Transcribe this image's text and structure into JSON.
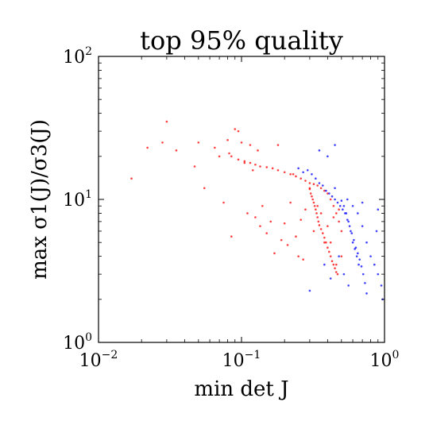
{
  "chart_data": {
    "type": "scatter",
    "title": "top 95% quality",
    "xlabel": "min det J",
    "ylabel": "max σ1(J)/σ3(J)",
    "x_scale": "log",
    "y_scale": "log",
    "xlim": [
      0.01,
      1
    ],
    "ylim": [
      1,
      100
    ],
    "x_ticks": [
      {
        "value": 0.01,
        "base": "10",
        "exp": "−2"
      },
      {
        "value": 0.1,
        "base": "10",
        "exp": "−1"
      },
      {
        "value": 1,
        "base": "10",
        "exp": "0"
      }
    ],
    "y_ticks": [
      {
        "value": 1,
        "base": "10",
        "exp": "0"
      },
      {
        "value": 10,
        "base": "10",
        "exp": "1"
      },
      {
        "value": 100,
        "base": "10",
        "exp": "2"
      }
    ],
    "grid": false,
    "legend": "none",
    "series": [
      {
        "color": "#ff0000",
        "points": [
          [
            0.017,
            14.0
          ],
          [
            0.022,
            23.0
          ],
          [
            0.028,
            25.0
          ],
          [
            0.03,
            35.0
          ],
          [
            0.035,
            22.0
          ],
          [
            0.047,
            17.0
          ],
          [
            0.05,
            25.0
          ],
          [
            0.055,
            12.0
          ],
          [
            0.065,
            23.0
          ],
          [
            0.07,
            20.0
          ],
          [
            0.075,
            9.5
          ],
          [
            0.08,
            26.0
          ],
          [
            0.082,
            21.0
          ],
          [
            0.085,
            5.5
          ],
          [
            0.09,
            31.0
          ],
          [
            0.095,
            30.0
          ],
          [
            0.1,
            25.0
          ],
          [
            0.105,
            18.0
          ],
          [
            0.11,
            8.0
          ],
          [
            0.115,
            24.0
          ],
          [
            0.12,
            16.0
          ],
          [
            0.125,
            7.5
          ],
          [
            0.13,
            22.0
          ],
          [
            0.135,
            6.5
          ],
          [
            0.14,
            9.0
          ],
          [
            0.15,
            5.8
          ],
          [
            0.16,
            7.0
          ],
          [
            0.17,
            4.2
          ],
          [
            0.18,
            24.0
          ],
          [
            0.19,
            5.2
          ],
          [
            0.2,
            6.8
          ],
          [
            0.21,
            4.8
          ],
          [
            0.22,
            9.5
          ],
          [
            0.23,
            15.0
          ],
          [
            0.24,
            5.5
          ],
          [
            0.25,
            4.0
          ],
          [
            0.26,
            7.2
          ],
          [
            0.27,
            3.8
          ],
          [
            0.28,
            8.5
          ],
          [
            0.3,
            12.0
          ],
          [
            0.32,
            6.0
          ],
          [
            0.34,
            9.0
          ],
          [
            0.36,
            8.0
          ],
          [
            0.38,
            5.0
          ],
          [
            0.4,
            6.5
          ],
          [
            0.42,
            5.0
          ],
          [
            0.44,
            7.5
          ],
          [
            0.46,
            3.5
          ],
          [
            0.48,
            8.5
          ],
          [
            0.5,
            4.0
          ],
          [
            0.085,
            20.0
          ],
          [
            0.095,
            19.0
          ],
          [
            0.105,
            18.5
          ],
          [
            0.115,
            18.0
          ],
          [
            0.125,
            17.5
          ],
          [
            0.135,
            17.0
          ],
          [
            0.15,
            16.8
          ],
          [
            0.165,
            16.5
          ],
          [
            0.18,
            16.0
          ],
          [
            0.2,
            15.5
          ],
          [
            0.22,
            15.0
          ],
          [
            0.24,
            14.5
          ],
          [
            0.26,
            14.0
          ],
          [
            0.28,
            13.5
          ],
          [
            0.3,
            13.0
          ],
          [
            0.32,
            12.8
          ],
          [
            0.34,
            12.5
          ],
          [
            0.36,
            12.0
          ],
          [
            0.38,
            11.5
          ],
          [
            0.4,
            11.0
          ],
          [
            0.42,
            10.0
          ],
          [
            0.44,
            9.0
          ],
          [
            0.46,
            8.0
          ],
          [
            0.48,
            7.0
          ],
          [
            0.5,
            6.0
          ],
          [
            0.3,
            11.8
          ],
          [
            0.305,
            11.0
          ],
          [
            0.31,
            10.5
          ],
          [
            0.315,
            10.0
          ],
          [
            0.32,
            9.5
          ],
          [
            0.325,
            9.0
          ],
          [
            0.33,
            8.5
          ],
          [
            0.335,
            8.0
          ],
          [
            0.34,
            7.5
          ],
          [
            0.345,
            7.0
          ],
          [
            0.35,
            6.6
          ],
          [
            0.36,
            6.2
          ],
          [
            0.37,
            5.8
          ],
          [
            0.38,
            5.4
          ],
          [
            0.39,
            5.0
          ],
          [
            0.4,
            4.6
          ],
          [
            0.41,
            4.3
          ],
          [
            0.42,
            4.0
          ],
          [
            0.43,
            3.7
          ],
          [
            0.44,
            3.5
          ],
          [
            0.45,
            3.3
          ],
          [
            0.46,
            3.1
          ],
          [
            0.47,
            3.0
          ]
        ]
      },
      {
        "color": "#0000ff",
        "points": [
          [
            0.25,
            16.5
          ],
          [
            0.27,
            15.5
          ],
          [
            0.29,
            16.0
          ],
          [
            0.31,
            15.0
          ],
          [
            0.33,
            14.0
          ],
          [
            0.35,
            13.0
          ],
          [
            0.37,
            12.5
          ],
          [
            0.39,
            11.5
          ],
          [
            0.41,
            11.0
          ],
          [
            0.43,
            10.5
          ],
          [
            0.45,
            10.0
          ],
          [
            0.47,
            9.5
          ],
          [
            0.49,
            9.0
          ],
          [
            0.51,
            8.5
          ],
          [
            0.53,
            8.0
          ],
          [
            0.55,
            7.2
          ],
          [
            0.57,
            6.5
          ],
          [
            0.59,
            5.8
          ],
          [
            0.61,
            5.2
          ],
          [
            0.63,
            4.6
          ],
          [
            0.65,
            4.2
          ],
          [
            0.67,
            3.8
          ],
          [
            0.69,
            3.4
          ],
          [
            0.71,
            3.0
          ],
          [
            0.73,
            2.6
          ],
          [
            0.75,
            2.2
          ],
          [
            0.5,
            9.8
          ],
          [
            0.52,
            9.0
          ],
          [
            0.54,
            8.0
          ],
          [
            0.56,
            7.0
          ],
          [
            0.58,
            6.0
          ],
          [
            0.6,
            5.0
          ],
          [
            0.62,
            4.5
          ],
          [
            0.64,
            4.0
          ],
          [
            0.66,
            3.5
          ],
          [
            0.35,
            22.0
          ],
          [
            0.4,
            20.0
          ],
          [
            0.45,
            12.0
          ],
          [
            0.55,
            10.0
          ],
          [
            0.6,
            9.0
          ],
          [
            0.65,
            8.0
          ],
          [
            0.7,
            6.5
          ],
          [
            0.75,
            5.0
          ],
          [
            0.8,
            4.0
          ],
          [
            0.85,
            3.5
          ],
          [
            0.9,
            3.0
          ],
          [
            0.95,
            2.5
          ],
          [
            0.97,
            2.0
          ],
          [
            0.38,
            3.5
          ],
          [
            0.42,
            2.8
          ],
          [
            0.48,
            4.0
          ],
          [
            0.52,
            3.0
          ],
          [
            0.56,
            2.5
          ],
          [
            0.3,
            2.3
          ],
          [
            0.9,
            8.5
          ],
          [
            0.88,
            6.0
          ],
          [
            0.7,
            9.5
          ],
          [
            0.45,
            24.0
          ]
        ]
      }
    ]
  }
}
